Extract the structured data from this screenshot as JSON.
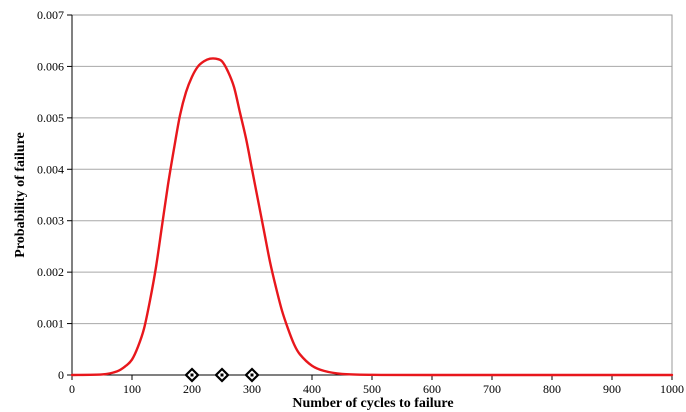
{
  "chart_data": {
    "type": "line",
    "title": "",
    "xlabel": "Number of cycles to failure",
    "ylabel": "Probability of failure",
    "xlim": [
      0,
      1000
    ],
    "ylim": [
      0,
      0.007
    ],
    "x_ticks": [
      0,
      100,
      200,
      300,
      400,
      500,
      600,
      700,
      800,
      900,
      1000
    ],
    "y_ticks": [
      0,
      0.001,
      0.002,
      0.003,
      0.004,
      0.005,
      0.006,
      0.007
    ],
    "x_tick_labels": [
      "0",
      "100",
      "200",
      "300",
      "400",
      "500",
      "600",
      "700",
      "800",
      "900",
      "1000"
    ],
    "y_tick_labels": [
      "0",
      "0.001",
      "0.002",
      "0.003",
      "0.004",
      "0.005",
      "0.006",
      "0.007"
    ],
    "grid": {
      "horizontal": true,
      "vertical": false
    },
    "legend": "none",
    "series": [
      {
        "color": "#e8171c",
        "points": [
          [
            0,
            0
          ],
          [
            50,
            1e-05
          ],
          [
            75,
            7e-05
          ],
          [
            90,
            0.00018
          ],
          [
            100,
            0.0003
          ],
          [
            110,
            0.00055
          ],
          [
            120,
            0.0009
          ],
          [
            130,
            0.00145
          ],
          [
            140,
            0.0021
          ],
          [
            150,
            0.0029
          ],
          [
            160,
            0.0037
          ],
          [
            170,
            0.0044
          ],
          [
            180,
            0.00505
          ],
          [
            190,
            0.0055
          ],
          [
            200,
            0.0058
          ],
          [
            210,
            0.006
          ],
          [
            220,
            0.0061
          ],
          [
            230,
            0.00615
          ],
          [
            240,
            0.00615
          ],
          [
            250,
            0.0061
          ],
          [
            260,
            0.0059
          ],
          [
            270,
            0.0056
          ],
          [
            280,
            0.0051
          ],
          [
            290,
            0.0046
          ],
          [
            300,
            0.004
          ],
          [
            310,
            0.0034
          ],
          [
            320,
            0.0028
          ],
          [
            330,
            0.0022
          ],
          [
            340,
            0.0017
          ],
          [
            350,
            0.00125
          ],
          [
            360,
            0.0009
          ],
          [
            370,
            0.0006
          ],
          [
            380,
            0.0004
          ],
          [
            400,
            0.00018
          ],
          [
            420,
            8e-05
          ],
          [
            450,
            2e-05
          ],
          [
            500,
            3e-06
          ],
          [
            600,
            0
          ],
          [
            1000,
            0
          ]
        ]
      }
    ],
    "markers": [
      {
        "x": 200,
        "y": 0
      },
      {
        "x": 250,
        "y": 0
      },
      {
        "x": 300,
        "y": 0
      }
    ]
  }
}
